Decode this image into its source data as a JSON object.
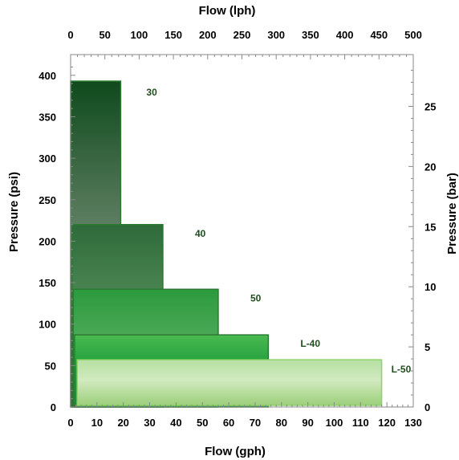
{
  "chart_data": {
    "type": "bar",
    "orientation": "horizontal-step",
    "title": "",
    "x_bottom": {
      "label": "Flow (gph)",
      "range": [
        0,
        130
      ],
      "ticks": [
        "0",
        "10",
        "20",
        "30",
        "40",
        "50",
        "60",
        "70",
        "80",
        "90",
        "100",
        "110",
        "120",
        "130"
      ]
    },
    "x_top": {
      "label": "Flow (lph)",
      "range": [
        0,
        500
      ],
      "ticks": [
        "0",
        "50",
        "100",
        "150",
        "200",
        "250",
        "300",
        "350",
        "400",
        "450",
        "500"
      ]
    },
    "y_left": {
      "label": "Pressure (psi)",
      "range": [
        0,
        400
      ],
      "ticks": [
        "0",
        "50",
        "100",
        "150",
        "200",
        "250",
        "300",
        "350",
        "400"
      ]
    },
    "y_right": {
      "label": "Pressure (bar)",
      "range": [
        0,
        28
      ],
      "ticks": [
        "0",
        "5",
        "10",
        "15",
        "20",
        "25"
      ]
    },
    "grid": false,
    "series": [
      {
        "name": "30",
        "flow_gph_start": 0,
        "flow_gph_end": 19,
        "pressure_psi_max": 393,
        "color_top": "#0f4a1c",
        "color_mid": "#5e7f62",
        "color_bottom": "#0a2e10"
      },
      {
        "name": "40",
        "flow_gph_start": 0.5,
        "flow_gph_end": 35,
        "pressure_psi_max": 220,
        "color_top": "#2f6a3a",
        "color_mid": "#4f8a57",
        "color_bottom": "#1d4e26"
      },
      {
        "name": "50",
        "flow_gph_start": 1,
        "flow_gph_end": 56,
        "pressure_psi_max": 142,
        "color_top": "#2b9a3d",
        "color_mid": "#4faa58",
        "color_bottom": "#4a8e50"
      },
      {
        "name": "L-40",
        "flow_gph_start": 1.5,
        "flow_gph_end": 75,
        "pressure_psi_max": 87,
        "color_top": "#49ba4f",
        "color_mid": "#1f9c3c",
        "color_bottom": "#17913a"
      },
      {
        "name": "L-50",
        "flow_gph_start": 2.5,
        "flow_gph_end": 118,
        "pressure_psi_max": 57,
        "color_top": "#b6e0a2",
        "color_mid": "#d1eabf",
        "color_bottom": "#9ccf7a"
      }
    ]
  }
}
